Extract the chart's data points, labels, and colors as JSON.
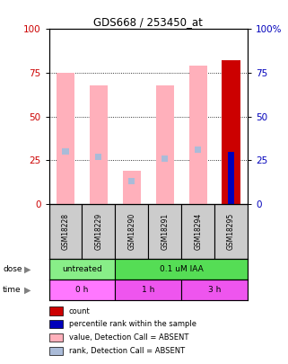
{
  "title": "GDS668 / 253450_at",
  "samples": [
    "GSM18228",
    "GSM18229",
    "GSM18290",
    "GSM18291",
    "GSM18294",
    "GSM18295"
  ],
  "pink_bar_values": [
    75,
    68,
    19,
    68,
    79,
    82
  ],
  "blue_marker_values": [
    30,
    27,
    13,
    26,
    31,
    30
  ],
  "is_present": [
    false,
    false,
    false,
    false,
    false,
    true
  ],
  "ylim": [
    0,
    100
  ],
  "yticks": [
    0,
    25,
    50,
    75,
    100
  ],
  "color_pink": "#FFB0BB",
  "color_lightblue": "#AABBD8",
  "color_red": "#CC0000",
  "color_blue": "#0000BB",
  "dose_groups": [
    {
      "text": "untreated",
      "start": 0,
      "end": 2,
      "color": "#88EE88"
    },
    {
      "text": "0.1 uM IAA",
      "start": 2,
      "end": 6,
      "color": "#55DD55"
    }
  ],
  "time_groups": [
    {
      "text": "0 h",
      "start": 0,
      "end": 2,
      "color": "#FF77FF"
    },
    {
      "text": "1 h",
      "start": 2,
      "end": 4,
      "color": "#EE55EE"
    },
    {
      "text": "3 h",
      "start": 4,
      "end": 6,
      "color": "#EE55EE"
    }
  ],
  "legend_items": [
    {
      "label": "count",
      "color": "#CC0000"
    },
    {
      "label": "percentile rank within the sample",
      "color": "#0000BB"
    },
    {
      "label": "value, Detection Call = ABSENT",
      "color": "#FFB0BB"
    },
    {
      "label": "rank, Detection Call = ABSENT",
      "color": "#AABBD8"
    }
  ],
  "bar_width": 0.55,
  "left_ylabel_color": "#CC0000",
  "right_ylabel_color": "#0000BB",
  "sample_bg": "#CCCCCC"
}
